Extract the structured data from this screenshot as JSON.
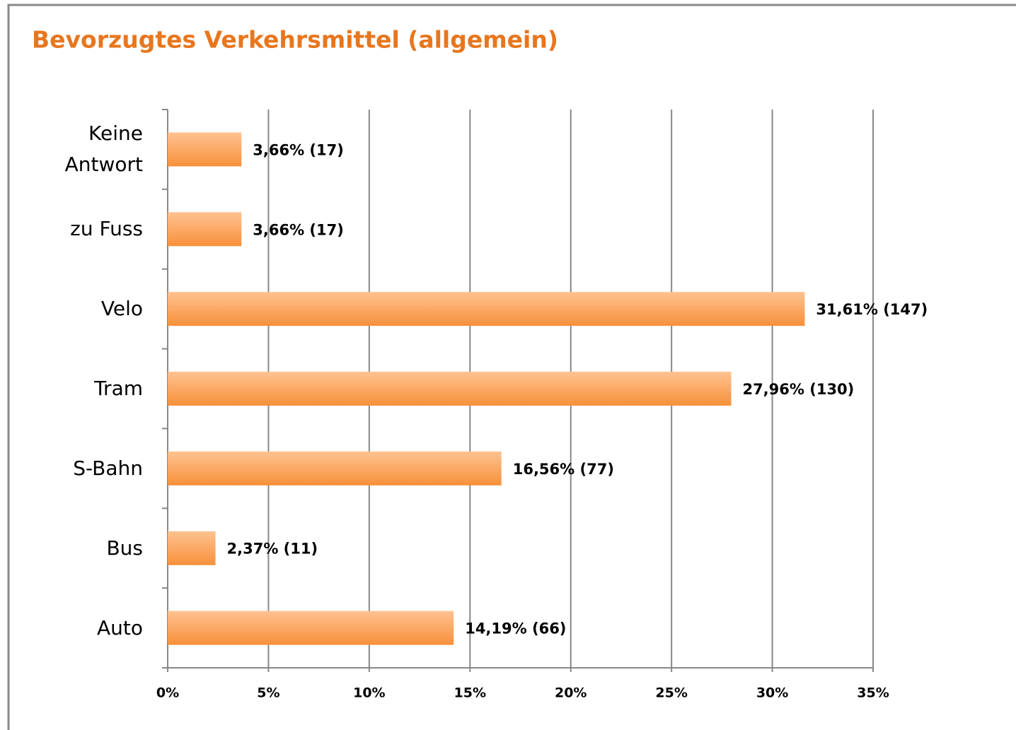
{
  "chart_data": {
    "type": "barh",
    "title": "Bevorzugtes Verkehrsmittel (allgemein)",
    "categories": [
      "Keine Antwort",
      "zu Fuss",
      "Velo",
      "Tram",
      "S-Bahn",
      "Bus",
      "Auto"
    ],
    "values": [
      3.66,
      3.66,
      31.61,
      27.96,
      16.56,
      2.37,
      14.19
    ],
    "value_labels": [
      "3,66% (17)",
      "3,66% (17)",
      "31,61% (147)",
      "27,96% (130)",
      "16,56% (77)",
      "2,37% (11)",
      "14,19% (66)"
    ],
    "color": "#f7963f",
    "xlim": [
      0,
      35
    ],
    "xticks": [
      {
        "value": 0,
        "label": "0%"
      },
      {
        "value": 5,
        "label": "5%"
      },
      {
        "value": 10,
        "label": "10%"
      },
      {
        "value": 15,
        "label": "15%"
      },
      {
        "value": 20,
        "label": "20%"
      },
      {
        "value": 25,
        "label": "25%"
      },
      {
        "value": 30,
        "label": "30%"
      },
      {
        "value": 35,
        "label": "35%"
      }
    ],
    "grid": true
  }
}
